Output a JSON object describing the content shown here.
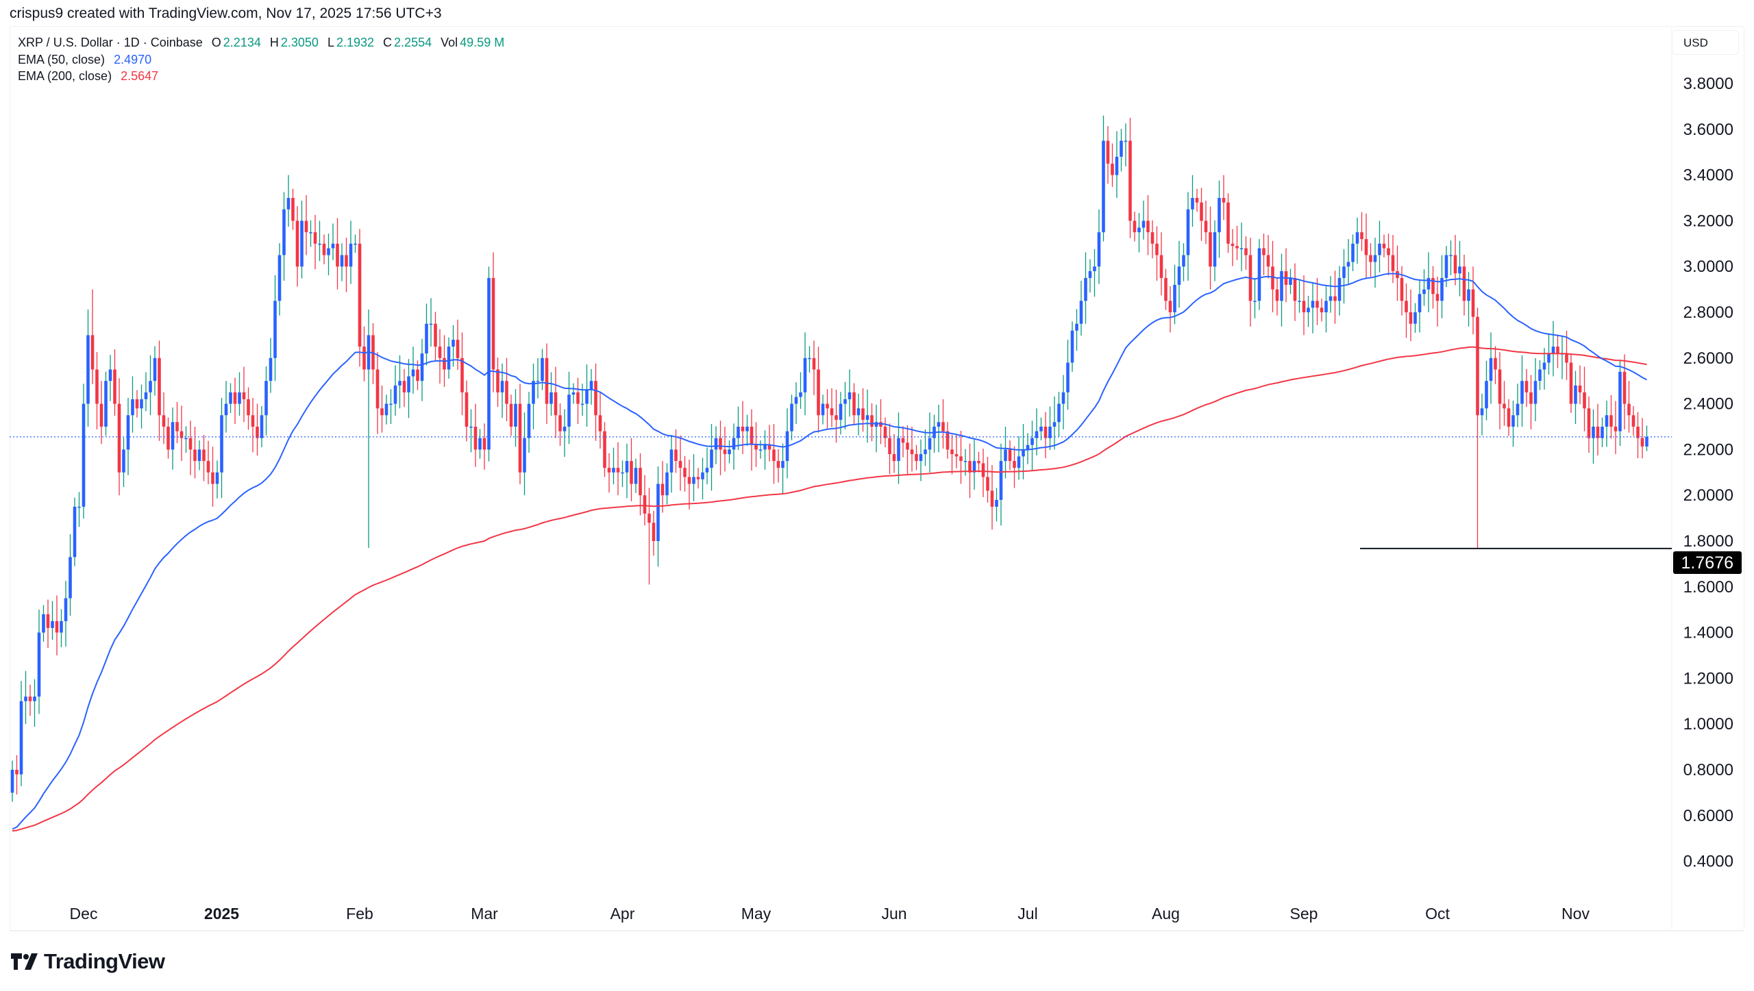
{
  "credit": "crispus9 created with TradingView.com, Nov 17, 2025 17:56 UTC+3",
  "legend": {
    "symbol": "XRP / U.S. Dollar · 1D · Coinbase",
    "o_label": "O",
    "o": "2.2134",
    "h_label": "H",
    "h": "2.3050",
    "l_label": "L",
    "l": "2.1932",
    "c_label": "C",
    "c": "2.2554",
    "vol_label": "Vol",
    "vol": "49.59 M",
    "ema50_label": "EMA (50, close)",
    "ema50": "2.4970",
    "ema200_label": "EMA (200, close)",
    "ema200": "2.5647"
  },
  "currency_button": "USD",
  "brand": "TradingView",
  "colors": {
    "up_body": "#2962ff",
    "up_wick": "#089981",
    "down": "#f23645",
    "ema50": "#2962ff",
    "ema200": "#f23645",
    "last_price_line": "#2962ff",
    "marker_line": "#131722"
  },
  "chart_data": {
    "type": "candlestick",
    "title": "XRP / U.S. Dollar · 1D · Coinbase",
    "start_date": "2024-11-15",
    "interval": "1D",
    "closes": [
      0.8,
      0.78,
      1.1,
      1.12,
      1.1,
      1.12,
      1.4,
      1.48,
      1.42,
      1.45,
      1.4,
      1.45,
      1.55,
      1.73,
      1.95,
      1.95,
      2.4,
      2.7,
      2.55,
      2.4,
      2.3,
      2.5,
      2.55,
      2.4,
      2.1,
      2.2,
      2.35,
      2.42,
      2.38,
      2.42,
      2.45,
      2.5,
      2.6,
      2.35,
      2.3,
      2.2,
      2.32,
      2.28,
      2.25,
      2.25,
      2.2,
      2.15,
      2.2,
      2.15,
      2.1,
      2.05,
      2.1,
      2.35,
      2.4,
      2.45,
      2.4,
      2.45,
      2.42,
      2.35,
      2.3,
      2.25,
      2.35,
      2.5,
      2.6,
      2.85,
      3.05,
      3.25,
      3.3,
      3.2,
      3.0,
      3.2,
      3.15,
      3.15,
      3.1,
      3.1,
      3.05,
      3.08,
      3.1,
      3.0,
      3.05,
      3.0,
      3.1,
      3.1,
      2.65,
      2.55,
      2.7,
      2.55,
      2.38,
      2.35,
      2.4,
      2.4,
      2.48,
      2.5,
      2.45,
      2.52,
      2.55,
      2.5,
      2.62,
      2.75,
      2.75,
      2.65,
      2.6,
      2.55,
      2.65,
      2.68,
      2.6,
      2.45,
      2.3,
      2.3,
      2.2,
      2.25,
      2.2,
      2.95,
      2.55,
      2.45,
      2.5,
      2.4,
      2.3,
      2.4,
      2.1,
      2.25,
      2.4,
      2.5,
      2.5,
      2.6,
      2.4,
      2.45,
      2.35,
      2.28,
      2.3,
      2.44,
      2.45,
      2.4,
      2.4,
      2.46,
      2.5,
      2.35,
      2.28,
      2.12,
      2.1,
      2.12,
      2.1,
      2.1,
      2.15,
      2.05,
      2.12,
      2.0,
      1.92,
      1.88,
      1.8,
      2.05,
      2.0,
      2.1,
      2.2,
      2.15,
      2.12,
      2.08,
      2.05,
      2.08,
      2.07,
      2.1,
      2.12,
      2.2,
      2.25,
      2.2,
      2.18,
      2.2,
      2.25,
      2.3,
      2.28,
      2.3,
      2.22,
      2.2,
      2.2,
      2.22,
      2.2,
      2.15,
      2.12,
      2.15,
      2.28,
      2.4,
      2.43,
      2.45,
      2.6,
      2.6,
      2.55,
      2.35,
      2.4,
      2.38,
      2.35,
      2.33,
      2.4,
      2.42,
      2.45,
      2.35,
      2.38,
      2.33,
      2.35,
      2.3,
      2.32,
      2.3,
      2.25,
      2.18,
      2.15,
      2.25,
      2.23,
      2.2,
      2.18,
      2.15,
      2.18,
      2.2,
      2.25,
      2.3,
      2.32,
      2.28,
      2.2,
      2.18,
      2.17,
      2.15,
      2.15,
      2.1,
      2.15,
      2.14,
      2.08,
      2.02,
      1.95,
      1.98,
      2.15,
      2.2,
      2.15,
      2.12,
      2.17,
      2.2,
      2.22,
      2.25,
      2.28,
      2.3,
      2.25,
      2.3,
      2.32,
      2.4,
      2.45,
      2.58,
      2.72,
      2.75,
      2.85,
      2.95,
      2.98,
      3.0,
      3.15,
      3.55,
      3.45,
      3.4,
      3.48,
      3.55,
      3.55,
      3.2,
      3.15,
      3.17,
      3.2,
      3.15,
      3.1,
      3.05,
      2.95,
      2.85,
      2.8,
      2.92,
      3.0,
      3.05,
      3.25,
      3.3,
      3.28,
      3.2,
      3.15,
      3.0,
      3.15,
      3.3,
      3.28,
      3.1,
      3.09,
      3.08,
      3.08,
      3.05,
      2.85,
      2.85,
      3.08,
      3.05,
      3.0,
      2.9,
      2.85,
      2.98,
      2.92,
      2.95,
      2.85,
      2.85,
      2.8,
      2.82,
      2.85,
      2.82,
      2.8,
      2.85,
      2.87,
      2.85,
      2.95,
      3.0,
      3.02,
      3.1,
      3.15,
      3.12,
      3.05,
      3.02,
      3.05,
      3.1,
      3.08,
      3.05,
      2.98,
      2.95,
      2.85,
      2.8,
      2.75,
      2.8,
      2.88,
      2.9,
      2.95,
      2.88,
      2.85,
      2.95,
      3.05,
      3.05,
      2.97,
      3.0,
      2.85,
      2.9,
      2.78,
      2.35,
      2.38,
      2.5,
      2.6,
      2.55,
      2.4,
      2.38,
      2.3,
      2.35,
      2.4,
      2.5,
      2.45,
      2.4,
      2.5,
      2.55,
      2.58,
      2.62,
      2.65,
      2.62,
      2.62,
      2.58,
      2.4,
      2.48,
      2.45,
      2.38,
      2.25,
      2.3,
      2.25,
      2.3,
      2.35,
      2.3,
      2.28,
      2.54,
      2.4,
      2.35,
      2.3,
      2.25,
      2.2134,
      2.2554
    ],
    "notable_wicks": [
      {
        "date": "2024-12-03",
        "high": 2.9
      },
      {
        "date": "2025-01-16",
        "high": 3.4
      },
      {
        "date": "2025-02-03",
        "low": 1.77
      },
      {
        "date": "2025-03-02",
        "high": 3.0
      },
      {
        "date": "2025-04-07",
        "low": 1.61
      },
      {
        "date": "2025-07-18",
        "high": 3.66
      },
      {
        "date": "2025-10-10",
        "low": 1.7676
      },
      {
        "date": "2025-11-17",
        "high": 2.305,
        "low": 2.1932
      }
    ],
    "indicators": [
      {
        "name": "EMA (50, close)",
        "last": 2.497
      },
      {
        "name": "EMA (200, close)",
        "last": 2.5647
      }
    ],
    "last_price": 2.2554,
    "horizontal_line": {
      "price": 1.7676,
      "label": "1.7676"
    },
    "y_ticks": [
      "3.8000",
      "3.6000",
      "3.4000",
      "3.2000",
      "3.0000",
      "2.8000",
      "2.6000",
      "2.4000",
      "2.2000",
      "2.0000",
      "1.8000",
      "1.6000",
      "1.4000",
      "1.2000",
      "1.0000",
      "0.8000",
      "0.6000",
      "0.4000"
    ],
    "x_ticks": [
      {
        "label": "Dec",
        "date": "2024-12-01"
      },
      {
        "label": "2025",
        "date": "2025-01-01",
        "bold": true
      },
      {
        "label": "Feb",
        "date": "2025-02-01"
      },
      {
        "label": "Mar",
        "date": "2025-03-01"
      },
      {
        "label": "Apr",
        "date": "2025-04-01"
      },
      {
        "label": "May",
        "date": "2025-05-01"
      },
      {
        "label": "Jun",
        "date": "2025-06-01"
      },
      {
        "label": "Jul",
        "date": "2025-07-01"
      },
      {
        "label": "Aug",
        "date": "2025-08-01"
      },
      {
        "label": "Sep",
        "date": "2025-09-01"
      },
      {
        "label": "Oct",
        "date": "2025-10-01"
      },
      {
        "label": "Nov",
        "date": "2025-11-01"
      }
    ],
    "ylim": [
      0.3,
      3.95
    ],
    "scale": "linear",
    "grid": false
  }
}
